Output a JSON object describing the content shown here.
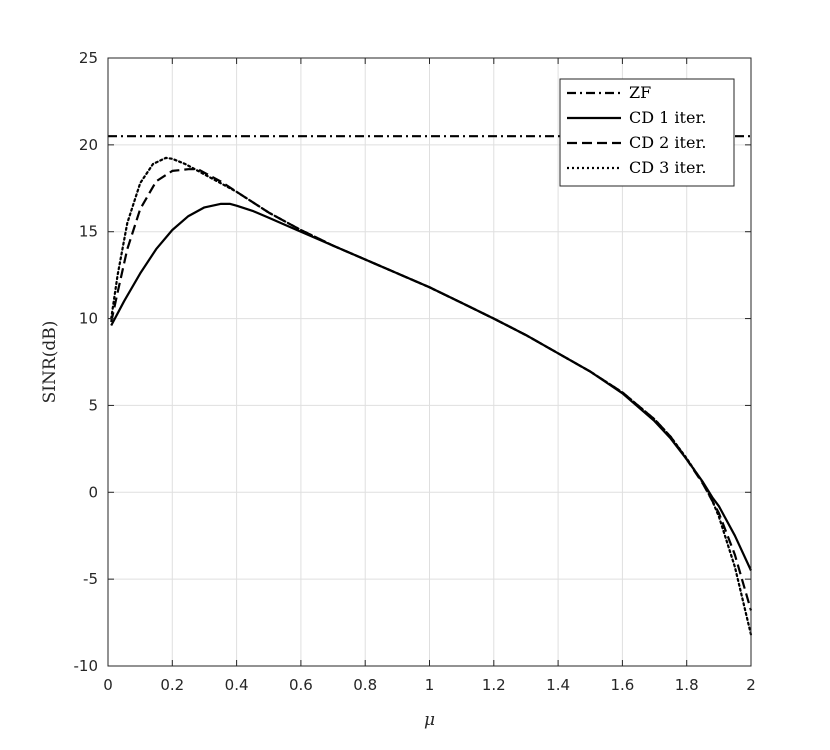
{
  "chart_data": {
    "type": "line",
    "title": "",
    "xlabel": "μ",
    "ylabel": "SINR(dB)",
    "xlim": [
      0,
      2
    ],
    "ylim": [
      -10,
      25
    ],
    "xticks": [
      0,
      0.2,
      0.4,
      0.6,
      0.8,
      1,
      1.2,
      1.4,
      1.6,
      1.8,
      2
    ],
    "xtick_labels": [
      "0",
      "0.2",
      "0.4",
      "0.6",
      "0.8",
      "1",
      "1.2",
      "1.4",
      "1.6",
      "1.8",
      "2"
    ],
    "yticks": [
      -10,
      -5,
      0,
      5,
      10,
      15,
      20,
      25
    ],
    "ytick_labels": [
      "-10",
      "-5",
      "0",
      "5",
      "10",
      "15",
      "20",
      "25"
    ],
    "grid": true,
    "legend_position": "top-right",
    "series": [
      {
        "name": "ZF",
        "line_style": "dash-dot",
        "color": "#000000",
        "x": [
          0,
          2
        ],
        "y": [
          20.5,
          20.5
        ]
      },
      {
        "name": "CD 1 iter.",
        "line_style": "solid",
        "color": "#000000",
        "x": [
          0.01,
          0.05,
          0.1,
          0.15,
          0.2,
          0.25,
          0.3,
          0.35,
          0.38,
          0.4,
          0.45,
          0.5,
          0.55,
          0.6,
          0.7,
          0.8,
          0.9,
          1.0,
          1.1,
          1.2,
          1.3,
          1.4,
          1.5,
          1.6,
          1.7,
          1.75,
          1.8,
          1.85,
          1.88,
          1.9,
          1.95,
          2.0
        ],
        "y": [
          9.6,
          11.0,
          12.6,
          14.0,
          15.1,
          15.9,
          16.4,
          16.6,
          16.6,
          16.5,
          16.2,
          15.8,
          15.4,
          15.0,
          14.2,
          13.4,
          12.6,
          11.8,
          10.9,
          10.0,
          9.05,
          8.0,
          6.95,
          5.7,
          4.1,
          3.1,
          1.9,
          0.6,
          -0.3,
          -0.8,
          -2.5,
          -4.5
        ]
      },
      {
        "name": "CD 2 iter.",
        "line_style": "dashed",
        "color": "#000000",
        "x": [
          0.01,
          0.03,
          0.06,
          0.1,
          0.15,
          0.2,
          0.25,
          0.28,
          0.3,
          0.35,
          0.4,
          0.45,
          0.5,
          0.55,
          0.6,
          0.7,
          0.8,
          0.9,
          1.0,
          1.1,
          1.2,
          1.3,
          1.4,
          1.5,
          1.6,
          1.7,
          1.75,
          1.8,
          1.85,
          1.88,
          1.9,
          1.95,
          2.0
        ],
        "y": [
          9.8,
          11.5,
          14.0,
          16.3,
          17.9,
          18.5,
          18.6,
          18.6,
          18.4,
          17.9,
          17.3,
          16.7,
          16.1,
          15.6,
          15.1,
          14.2,
          13.4,
          12.6,
          11.8,
          10.9,
          10.0,
          9.05,
          8.0,
          6.95,
          5.75,
          4.2,
          3.2,
          1.9,
          0.5,
          -0.5,
          -1.2,
          -3.6,
          -6.8
        ]
      },
      {
        "name": "CD 3 iter.",
        "line_style": "dotted",
        "color": "#000000",
        "x": [
          0.01,
          0.03,
          0.06,
          0.1,
          0.14,
          0.18,
          0.2,
          0.24,
          0.28,
          0.32,
          0.36,
          0.4,
          0.45,
          0.5,
          0.55,
          0.6,
          0.7,
          0.8,
          0.9,
          1.0,
          1.1,
          1.2,
          1.3,
          1.4,
          1.5,
          1.6,
          1.7,
          1.75,
          1.8,
          1.85,
          1.88,
          1.9,
          1.95,
          2.0
        ],
        "y": [
          10.0,
          12.5,
          15.5,
          17.8,
          18.9,
          19.25,
          19.2,
          18.9,
          18.5,
          18.1,
          17.7,
          17.3,
          16.7,
          16.1,
          15.6,
          15.1,
          14.2,
          13.4,
          12.6,
          11.8,
          10.9,
          10.0,
          9.05,
          8.0,
          6.95,
          5.75,
          4.2,
          3.2,
          1.95,
          0.55,
          -0.5,
          -1.4,
          -4.3,
          -8.2
        ]
      }
    ]
  }
}
